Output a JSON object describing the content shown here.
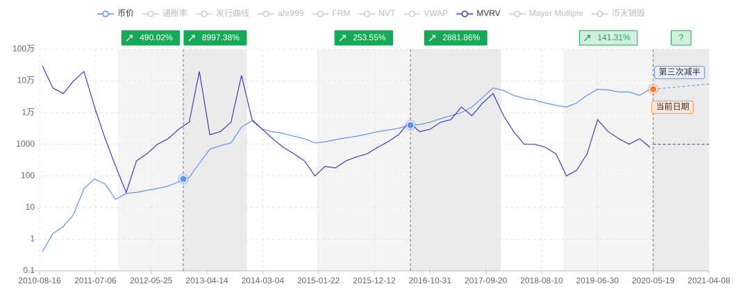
{
  "chart_data": {
    "type": "line",
    "log_scale": true,
    "grid": true,
    "xlim": [
      "2010-08-16",
      "2021-04-08"
    ],
    "xticks": [
      "2010-08-16",
      "2011-07-06",
      "2012-05-25",
      "2013-04-14",
      "2014-03-04",
      "2015-01-22",
      "2015-12-12",
      "2016-10-31",
      "2017-09-20",
      "2018-08-10",
      "2019-06-30",
      "2020-05-19",
      "2021-04-08"
    ],
    "ylim": [
      0.1,
      1000000
    ],
    "yticks": [
      0.1,
      1,
      10,
      100,
      1000,
      {
        "value": 10000,
        "label": "1万"
      },
      {
        "value": 100000,
        "label": "10万"
      },
      {
        "value": 1000000,
        "label": "100万"
      }
    ],
    "x": [
      "2010-09-01",
      "2010-11-01",
      "2011-01-01",
      "2011-03-01",
      "2011-05-01",
      "2011-07-01",
      "2011-09-01",
      "2011-11-01",
      "2012-01-01",
      "2012-03-01",
      "2012-05-01",
      "2012-07-01",
      "2012-09-01",
      "2012-11-01",
      "2013-01-01",
      "2013-03-01",
      "2013-05-01",
      "2013-07-01",
      "2013-09-01",
      "2013-11-01",
      "2014-01-01",
      "2014-03-01",
      "2014-05-01",
      "2014-07-01",
      "2014-09-01",
      "2014-11-01",
      "2015-01-01",
      "2015-03-01",
      "2015-05-01",
      "2015-07-01",
      "2015-09-01",
      "2015-11-01",
      "2016-01-01",
      "2016-03-01",
      "2016-05-01",
      "2016-07-01",
      "2016-09-01",
      "2016-11-01",
      "2017-01-01",
      "2017-03-01",
      "2017-05-01",
      "2017-07-01",
      "2017-09-01",
      "2017-11-01",
      "2018-01-01",
      "2018-03-01",
      "2018-05-01",
      "2018-07-01",
      "2018-09-01",
      "2018-11-01",
      "2019-01-01",
      "2019-03-01",
      "2019-05-01",
      "2019-07-01",
      "2019-09-01",
      "2019-11-01",
      "2020-01-01",
      "2020-03-01",
      "2020-05-01"
    ],
    "series": [
      {
        "name": "币价",
        "color": "#5b8ff9",
        "visible": true,
        "values": [
          0.4,
          1.5,
          2.5,
          6,
          40,
          80,
          55,
          18,
          28,
          30,
          35,
          40,
          48,
          65,
          90,
          250,
          700,
          900,
          1100,
          3500,
          5500,
          3000,
          2500,
          2200,
          1800,
          1500,
          1100,
          1200,
          1400,
          1600,
          1800,
          2100,
          2500,
          2800,
          3200,
          4000,
          4200,
          5000,
          6500,
          8000,
          10000,
          15000,
          30000,
          60000,
          50000,
          35000,
          28000,
          25000,
          20000,
          17000,
          15000,
          20000,
          35000,
          55000,
          52000,
          45000,
          45000,
          35000,
          55000
        ],
        "forecast": {
          "x": [
            "2020-05-19",
            "2021-04-08"
          ],
          "values": [
            55000,
            80000
          ]
        }
      },
      {
        "name": "通胀率",
        "visible": false
      },
      {
        "name": "发行曲线",
        "visible": false
      },
      {
        "name": "ahr999",
        "visible": false
      },
      {
        "name": "FRM",
        "visible": false
      },
      {
        "name": "NVT",
        "visible": false
      },
      {
        "name": "VWAP",
        "visible": false
      },
      {
        "name": "MVRV",
        "color": "#3b3bbf",
        "visible": true,
        "values": [
          300000,
          60000,
          40000,
          100000,
          200000,
          15000,
          1500,
          200,
          30,
          300,
          500,
          1000,
          1500,
          3000,
          5000,
          200000,
          2000,
          2500,
          5000,
          150000,
          6000,
          3000,
          1500,
          800,
          500,
          300,
          100,
          200,
          180,
          300,
          400,
          500,
          800,
          1200,
          2000,
          5000,
          2500,
          3000,
          5000,
          6000,
          15000,
          8000,
          20000,
          40000,
          8000,
          2500,
          1000,
          1000,
          800,
          500,
          100,
          150,
          500,
          6000,
          2500,
          1500,
          1000,
          1500,
          800
        ],
        "forecast": {
          "x": [
            "2020-05-19",
            "2021-04-08"
          ],
          "values": [
            1000,
            1000
          ]
        }
      },
      {
        "name": "Mayer Multiple",
        "visible": false
      },
      {
        "name": "币天销毁",
        "visible": false
      }
    ],
    "phases": [
      {
        "start": "2011-11-14",
        "end": "2012-11-28",
        "badge": "490.02%",
        "done": true
      },
      {
        "start": "2012-11-28",
        "end": "2013-12-03",
        "badge": "8997.38%",
        "done": true
      },
      {
        "start": "2015-01-14",
        "end": "2016-07-09",
        "badge": "253.55%",
        "done": true
      },
      {
        "start": "2016-07-09",
        "end": "2017-12-17",
        "badge": "2881.86%",
        "done": true
      },
      {
        "start": "2018-12-15",
        "end": "2020-05-19",
        "badge": "141.31%",
        "done": false
      },
      {
        "start": "2020-05-19",
        "end": "2021-04-08",
        "badge": "?",
        "done": false
      }
    ],
    "markers": [
      {
        "x": "2012-11-28",
        "value": 80,
        "color": "#5b8ff9"
      },
      {
        "x": "2016-07-09",
        "value": 4000,
        "color": "#5b8ff9"
      },
      {
        "x": "2020-05-19",
        "value": 55000,
        "color": "#f07c3c",
        "labels": [
          "第三次减半",
          "当前日期"
        ]
      }
    ]
  }
}
